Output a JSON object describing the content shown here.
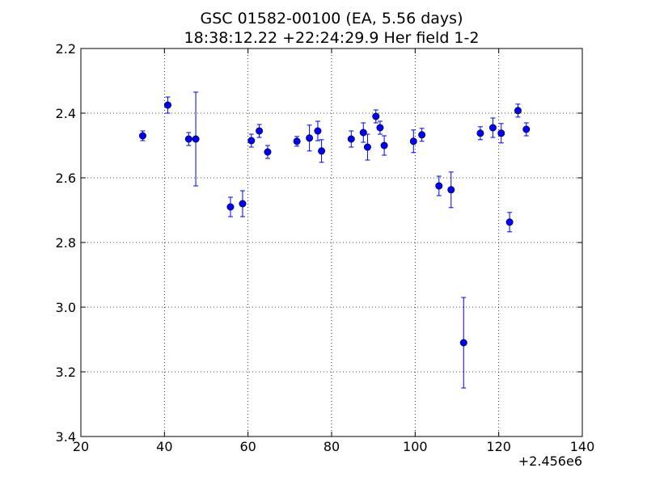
{
  "chart_data": {
    "type": "scatter",
    "title_line1": "GSC 01582-00100 (EA, 5.56 days)",
    "title_line2": "18:38:12.22 +22:24:29.9 Her field 1-2",
    "xlabel": "",
    "ylabel": "",
    "x_offset_label": "+2.456e6",
    "xlim": [
      20,
      140
    ],
    "ylim": [
      2.2,
      3.4
    ],
    "y_inverted": true,
    "x_ticks": [
      20,
      40,
      60,
      80,
      100,
      120,
      140
    ],
    "x_tick_labels": [
      "20",
      "40",
      "60",
      "80",
      "100",
      "120",
      "140"
    ],
    "y_ticks": [
      2.2,
      2.4,
      2.6,
      2.8,
      3.0,
      3.2,
      3.4
    ],
    "y_tick_labels": [
      "2.2",
      "2.4",
      "2.6",
      "2.8",
      "3.0",
      "3.2",
      "3.4"
    ],
    "grid": true,
    "marker_color": "#0000ff",
    "points": [
      {
        "x": 34.8,
        "y": 2.47,
        "err": 0.015
      },
      {
        "x": 40.8,
        "y": 2.375,
        "err": 0.025
      },
      {
        "x": 45.8,
        "y": 2.48,
        "err": 0.02
      },
      {
        "x": 47.5,
        "y": 2.48,
        "err": 0.145
      },
      {
        "x": 55.8,
        "y": 2.69,
        "err": 0.03
      },
      {
        "x": 58.7,
        "y": 2.68,
        "err": 0.04
      },
      {
        "x": 60.8,
        "y": 2.485,
        "err": 0.02
      },
      {
        "x": 62.7,
        "y": 2.455,
        "err": 0.02
      },
      {
        "x": 64.7,
        "y": 2.52,
        "err": 0.02
      },
      {
        "x": 71.7,
        "y": 2.487,
        "err": 0.015
      },
      {
        "x": 74.7,
        "y": 2.477,
        "err": 0.04
      },
      {
        "x": 76.7,
        "y": 2.455,
        "err": 0.03
      },
      {
        "x": 77.6,
        "y": 2.517,
        "err": 0.035
      },
      {
        "x": 84.7,
        "y": 2.48,
        "err": 0.025
      },
      {
        "x": 87.6,
        "y": 2.46,
        "err": 0.03
      },
      {
        "x": 88.6,
        "y": 2.505,
        "err": 0.04
      },
      {
        "x": 90.6,
        "y": 2.41,
        "err": 0.02
      },
      {
        "x": 91.6,
        "y": 2.445,
        "err": 0.02
      },
      {
        "x": 92.6,
        "y": 2.5,
        "err": 0.03
      },
      {
        "x": 99.6,
        "y": 2.487,
        "err": 0.035
      },
      {
        "x": 101.6,
        "y": 2.467,
        "err": 0.02
      },
      {
        "x": 105.7,
        "y": 2.625,
        "err": 0.03
      },
      {
        "x": 108.6,
        "y": 2.637,
        "err": 0.055
      },
      {
        "x": 111.6,
        "y": 3.11,
        "err": 0.14
      },
      {
        "x": 115.6,
        "y": 2.462,
        "err": 0.02
      },
      {
        "x": 118.6,
        "y": 2.445,
        "err": 0.03
      },
      {
        "x": 120.6,
        "y": 2.462,
        "err": 0.03
      },
      {
        "x": 122.6,
        "y": 2.737,
        "err": 0.03
      },
      {
        "x": 124.6,
        "y": 2.392,
        "err": 0.02
      },
      {
        "x": 126.6,
        "y": 2.45,
        "err": 0.02
      }
    ]
  }
}
